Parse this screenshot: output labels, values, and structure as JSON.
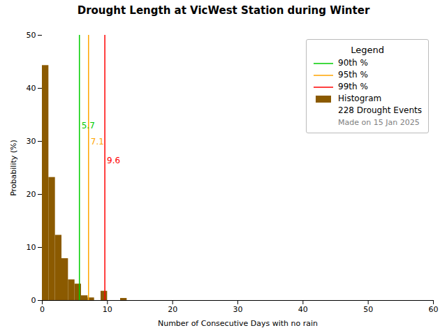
{
  "chart_data": {
    "type": "histogram",
    "title": "Drought Length at VicWest Station during Winter",
    "xlabel": "Number of Consecutive Days with no rain",
    "ylabel": "Probability (%)",
    "bins": [
      0,
      1,
      2,
      3,
      4,
      5,
      6,
      7,
      8,
      9,
      10,
      11,
      12,
      13,
      14,
      15,
      16,
      17,
      18,
      19,
      20,
      21,
      22,
      23,
      24,
      25,
      26,
      27,
      28,
      29,
      30,
      31,
      32,
      33,
      34,
      35,
      36,
      37,
      38,
      39,
      40,
      41,
      42,
      43,
      44,
      45,
      46,
      47,
      48,
      49,
      50,
      51,
      52,
      53,
      54,
      55,
      56,
      57,
      58,
      59,
      60
    ],
    "series": [
      {
        "name": "90th %",
        "type": "vline",
        "color": "#00CC00",
        "values": [
          5.7
        ]
      },
      {
        "name": "95th %",
        "type": "vline",
        "color": "#FFA500",
        "values": [
          7.1
        ]
      },
      {
        "name": "99th %",
        "type": "vline",
        "color": "#FF0000",
        "values": [
          9.6
        ]
      },
      {
        "name": "Histogram",
        "type": "histogram",
        "color": "#8B5A00",
        "values": [
          44.3,
          23.2,
          12.3,
          7.9,
          3.9,
          3.1,
          0.9,
          0.5,
          0.0,
          1.75,
          0.0,
          0.0,
          0.4,
          0.0,
          0.0,
          0.0,
          0.0,
          0.0,
          0.0,
          0.0,
          0.0,
          0.0,
          0.0,
          0.0,
          0.0,
          0.0,
          0.0,
          0.0,
          0.0,
          0.0,
          0.0,
          0.0,
          0.0,
          0.0,
          0.0,
          0.0,
          0.0,
          0.0,
          0.0,
          0.0,
          0.0,
          0.0,
          0.0,
          0.0,
          0.0,
          0.0,
          0.0,
          0.0,
          0.0,
          0.0,
          0.0,
          0.0,
          0.0,
          0.0,
          0.0,
          0.0,
          0.0,
          0.0,
          0.0,
          0.0
        ]
      }
    ],
    "annotations": [
      {
        "text": "5.7",
        "x": 5.7,
        "y": 33.5,
        "color": "#00CC00"
      },
      {
        "text": "7.1",
        "x": 7.1,
        "y": 30.5,
        "color": "#FFA500"
      },
      {
        "text": "9.6",
        "x": 9.6,
        "y": 27.0,
        "color": "#FF0000"
      }
    ],
    "xlim": [
      0,
      60
    ],
    "ylim": [
      0,
      50
    ],
    "xticks": [
      0,
      10,
      20,
      30,
      40,
      50,
      60
    ],
    "yticks": [
      0,
      10,
      20,
      30,
      40,
      50
    ],
    "grid": false,
    "legend": "upper right",
    "legend_title": "Legend",
    "legend_notes": [
      "228 Drought Events",
      "Made on 15 Jan 2025"
    ]
  }
}
